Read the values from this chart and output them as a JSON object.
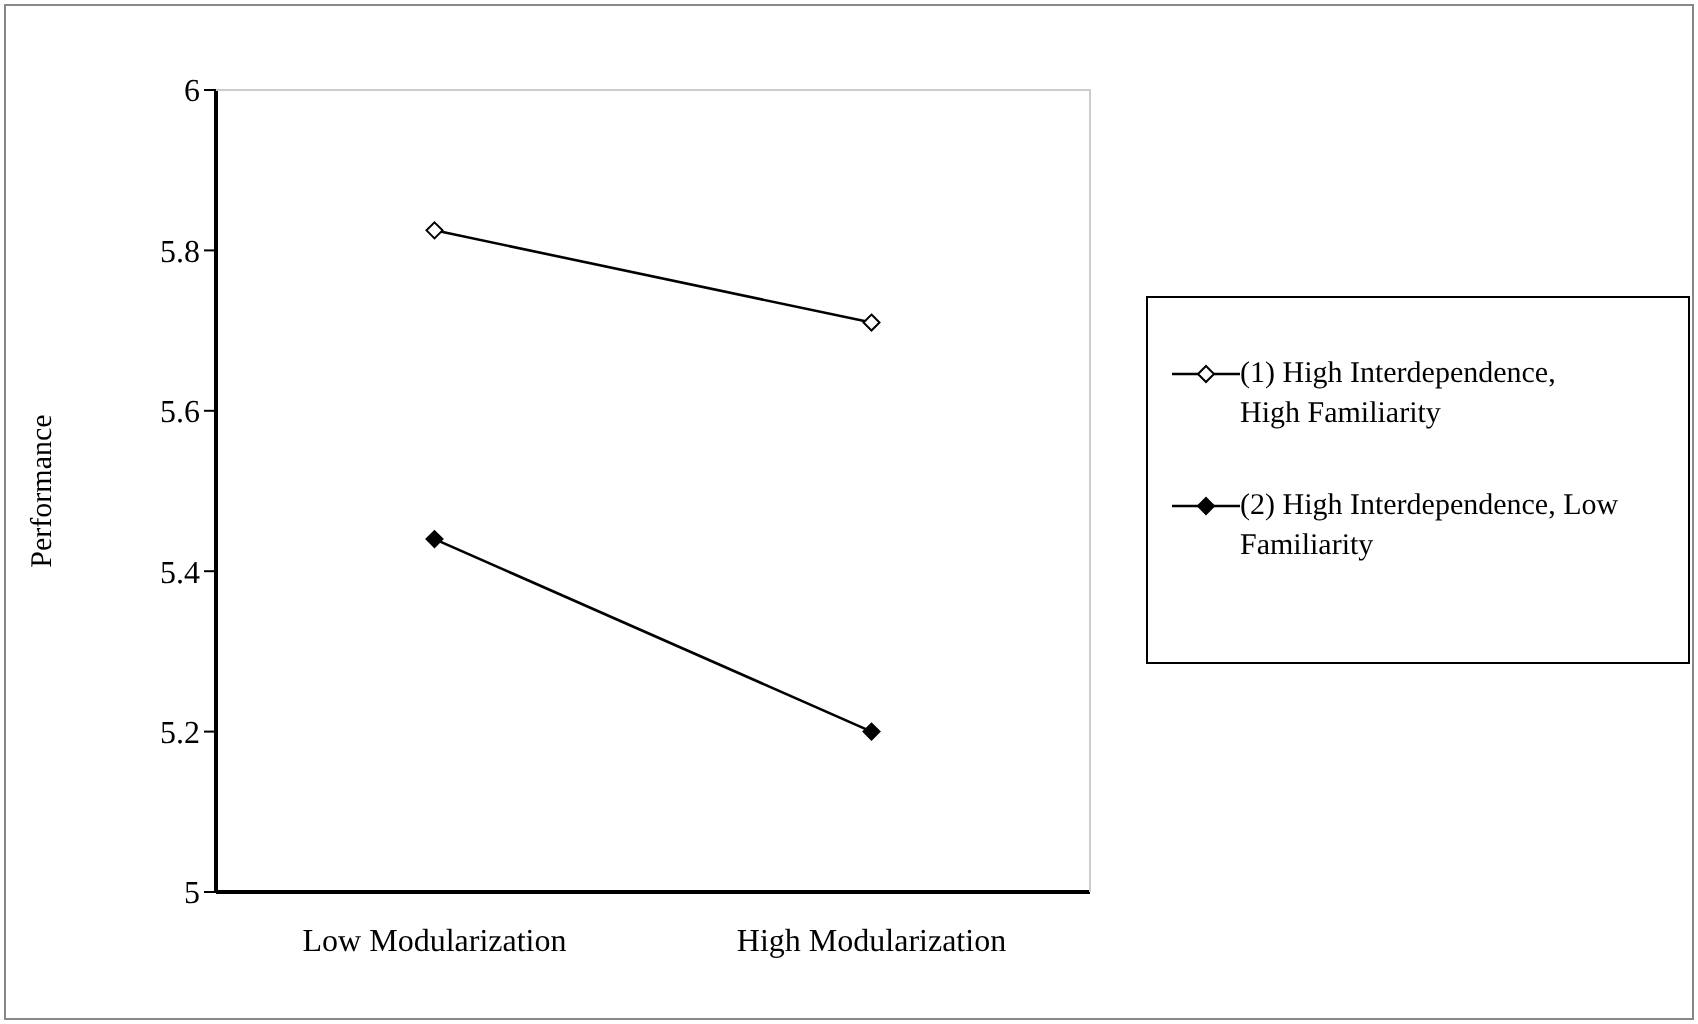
{
  "chart_data": {
    "type": "line",
    "ylabel": "Performance",
    "categories": [
      "Low Modularization",
      "High Modularization"
    ],
    "series": [
      {
        "name": "(1) High Interdependence, High Familiarity",
        "color": "#000000",
        "values": [
          5.825,
          5.71
        ]
      },
      {
        "name": "(2) High Interdependence, Low Familiarity",
        "color": "#000000",
        "values": [
          5.44,
          5.2
        ]
      }
    ],
    "ylim": [
      5,
      6
    ],
    "yticks": [
      5,
      5.2,
      5.4,
      5.6,
      5.8,
      6
    ],
    "legend": "right",
    "marker": "diamond",
    "line_style": "solid"
  }
}
